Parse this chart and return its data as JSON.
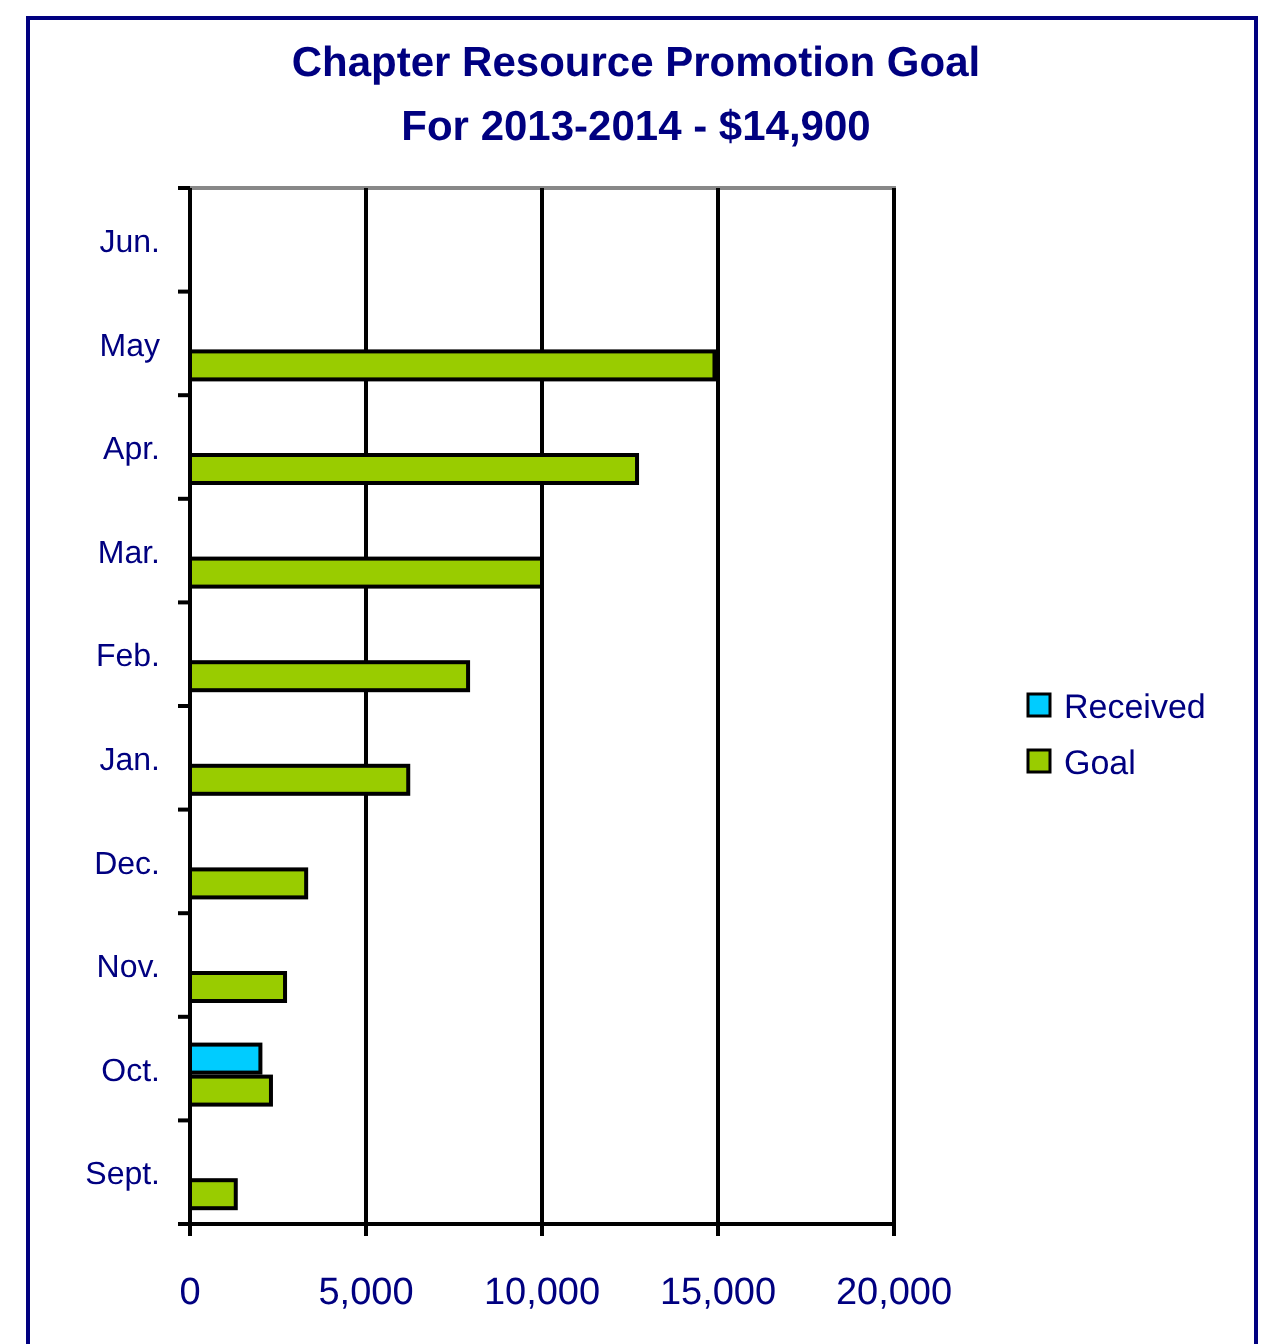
{
  "chart_data": {
    "type": "bar",
    "orientation": "horizontal",
    "title": "Chapter Resource Promotion Goal",
    "subtitle": "For 2013-2014 - $14,900",
    "categories": [
      "Jun.",
      "May",
      "Apr.",
      "Mar.",
      "Feb.",
      "Jan.",
      "Dec.",
      "Nov.",
      "Oct.",
      "Sept."
    ],
    "series": [
      {
        "name": "Received",
        "color": "#00ccff",
        "values": [
          null,
          null,
          null,
          null,
          null,
          null,
          null,
          null,
          2000,
          null
        ]
      },
      {
        "name": "Goal",
        "color": "#99cc00",
        "values": [
          null,
          14900,
          12700,
          10000,
          7900,
          6200,
          3300,
          2700,
          2300,
          1300
        ]
      }
    ],
    "xlim": [
      0,
      20000
    ],
    "xticks": [
      {
        "value": 0,
        "label": "0"
      },
      {
        "value": 5000,
        "label": "5,000"
      },
      {
        "value": 10000,
        "label": "10,000"
      },
      {
        "value": 15000,
        "label": "15,000"
      },
      {
        "value": 20000,
        "label": "20,000"
      }
    ],
    "grid": "x",
    "legend": "right"
  }
}
